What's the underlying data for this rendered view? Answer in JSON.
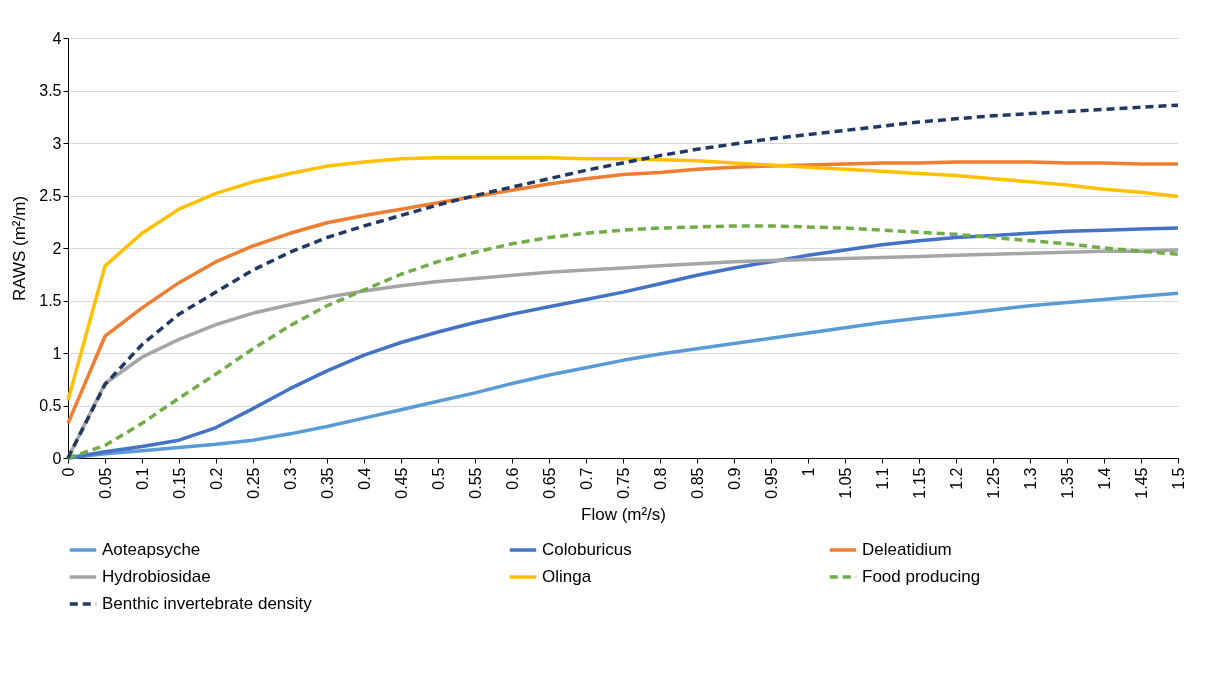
{
  "chart_data": {
    "type": "line",
    "xlabel": "Flow (m²/s)",
    "ylabel": "RAWS (m²/m)",
    "categories": [
      "0",
      "0.05",
      "0.1",
      "0.15",
      "0.2",
      "0.25",
      "0.3",
      "0.35",
      "0.4",
      "0.45",
      "0.5",
      "0.55",
      "0.6",
      "0.65",
      "0.7",
      "0.75",
      "0.8",
      "0.85",
      "0.9",
      "0.95",
      "1",
      "1.05",
      "1.1",
      "1.15",
      "1.2",
      "1.25",
      "1.3",
      "1.35",
      "1.4",
      "1.45",
      "1.5"
    ],
    "series": [
      {
        "name": "Aoteapsyche",
        "color": "#5b9bd5",
        "line_style": "solid",
        "values": [
          0,
          0.04,
          0.07,
          0.1,
          0.13,
          0.17,
          0.23,
          0.3,
          0.38,
          0.46,
          0.54,
          0.62,
          0.71,
          0.79,
          0.86,
          0.93,
          0.99,
          1.04,
          1.09,
          1.14,
          1.19,
          1.24,
          1.29,
          1.33,
          1.37,
          1.41,
          1.45,
          1.48,
          1.51,
          1.54,
          1.57
        ]
      },
      {
        "name": "Coloburicus",
        "color": "#4472c4",
        "line_style": "solid",
        "values": [
          0,
          0.06,
          0.11,
          0.17,
          0.29,
          0.47,
          0.66,
          0.83,
          0.98,
          1.1,
          1.2,
          1.29,
          1.37,
          1.44,
          1.51,
          1.58,
          1.66,
          1.74,
          1.81,
          1.87,
          1.93,
          1.98,
          2.03,
          2.07,
          2.1,
          2.12,
          2.14,
          2.16,
          2.17,
          2.18,
          2.19
        ]
      },
      {
        "name": "Deleatidium",
        "color": "#ed7d31",
        "line_style": "solid",
        "values": [
          0.33,
          1.16,
          1.43,
          1.67,
          1.87,
          2.02,
          2.14,
          2.24,
          2.31,
          2.37,
          2.43,
          2.49,
          2.55,
          2.61,
          2.66,
          2.7,
          2.72,
          2.75,
          2.77,
          2.78,
          2.79,
          2.8,
          2.81,
          2.81,
          2.82,
          2.82,
          2.82,
          2.81,
          2.81,
          2.8,
          2.8
        ]
      },
      {
        "name": "Hydrobiosidae",
        "color": "#a5a5a5",
        "line_style": "solid",
        "values": [
          0,
          0.71,
          0.96,
          1.13,
          1.27,
          1.38,
          1.46,
          1.53,
          1.59,
          1.64,
          1.68,
          1.71,
          1.74,
          1.77,
          1.79,
          1.81,
          1.83,
          1.85,
          1.87,
          1.88,
          1.89,
          1.9,
          1.91,
          1.92,
          1.93,
          1.94,
          1.95,
          1.96,
          1.97,
          1.97,
          1.98
        ]
      },
      {
        "name": "Olinga",
        "color": "#ffc000",
        "line_style": "solid",
        "values": [
          0.55,
          1.83,
          2.14,
          2.37,
          2.52,
          2.63,
          2.71,
          2.78,
          2.82,
          2.85,
          2.86,
          2.86,
          2.86,
          2.86,
          2.85,
          2.85,
          2.84,
          2.83,
          2.81,
          2.79,
          2.77,
          2.75,
          2.73,
          2.71,
          2.69,
          2.66,
          2.63,
          2.6,
          2.56,
          2.53,
          2.49
        ]
      },
      {
        "name": "Food producing",
        "color": "#70ad47",
        "line_style": "dashed",
        "values": [
          0,
          0.12,
          0.33,
          0.57,
          0.8,
          1.04,
          1.26,
          1.45,
          1.6,
          1.75,
          1.87,
          1.96,
          2.04,
          2.1,
          2.14,
          2.17,
          2.19,
          2.2,
          2.21,
          2.21,
          2.2,
          2.19,
          2.17,
          2.15,
          2.13,
          2.1,
          2.07,
          2.04,
          2.0,
          1.97,
          1.94
        ]
      },
      {
        "name": "Benthic invertebrate density",
        "color": "#203864",
        "line_style": "dashed",
        "values": [
          0,
          0.7,
          1.08,
          1.37,
          1.58,
          1.79,
          1.96,
          2.1,
          2.21,
          2.31,
          2.41,
          2.5,
          2.58,
          2.66,
          2.74,
          2.81,
          2.88,
          2.94,
          2.99,
          3.04,
          3.08,
          3.12,
          3.16,
          3.2,
          3.23,
          3.26,
          3.28,
          3.3,
          3.32,
          3.34,
          3.36
        ]
      }
    ],
    "ylim": [
      0,
      4
    ],
    "yticks": [
      0,
      0.5,
      1,
      1.5,
      2,
      2.5,
      3,
      3.5,
      4
    ],
    "grid": "y",
    "legend": "bottom"
  }
}
